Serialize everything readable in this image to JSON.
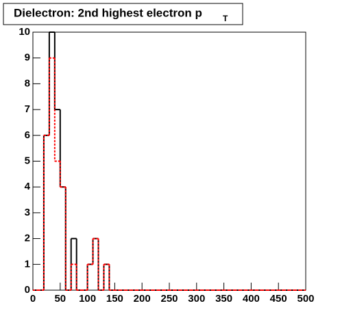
{
  "chart_data": {
    "type": "histogram",
    "title": "Dielectron: 2nd highest electron p",
    "title_subscript": "T",
    "bins": [
      0,
      10,
      20,
      30,
      40,
      50,
      60,
      70,
      80,
      90,
      100,
      110,
      120,
      130,
      140,
      150,
      160,
      170,
      180,
      190,
      200,
      210,
      220,
      230,
      240,
      250,
      260,
      270,
      280,
      290,
      300,
      310,
      320,
      330,
      340,
      350,
      360,
      370,
      380,
      390,
      400,
      410,
      420,
      430,
      440,
      450,
      460,
      470,
      480,
      490,
      500
    ],
    "series": [
      {
        "color": "#000000",
        "dashed": false,
        "values": [
          0,
          0,
          6,
          10,
          7,
          4,
          0,
          2,
          0,
          0,
          1,
          2,
          0,
          1,
          0,
          0,
          0,
          0,
          0,
          0,
          0,
          0,
          0,
          0,
          0,
          0,
          0,
          0,
          0,
          0,
          0,
          0,
          0,
          0,
          0,
          0,
          0,
          0,
          0,
          0,
          0,
          0,
          0,
          0,
          0,
          0,
          0,
          0,
          0,
          0
        ]
      },
      {
        "color": "#ff0000",
        "dashed": true,
        "values": [
          0,
          0,
          6,
          9,
          5,
          4,
          0,
          1,
          0,
          0,
          1,
          2,
          0,
          1,
          0,
          0,
          0,
          0,
          0,
          0,
          0,
          0,
          0,
          0,
          0,
          0,
          0,
          0,
          0,
          0,
          0,
          0,
          0,
          0,
          0,
          0,
          0,
          0,
          0,
          0,
          0,
          0,
          0,
          0,
          0,
          0,
          0,
          0,
          0,
          0
        ]
      }
    ],
    "xlim": [
      0,
      500
    ],
    "xticks": [
      0,
      50,
      100,
      150,
      200,
      250,
      300,
      350,
      400,
      450,
      500
    ],
    "ylim": [
      0,
      10
    ],
    "yticks": [
      0,
      1,
      2,
      3,
      4,
      5,
      6,
      7,
      8,
      9,
      10
    ]
  }
}
